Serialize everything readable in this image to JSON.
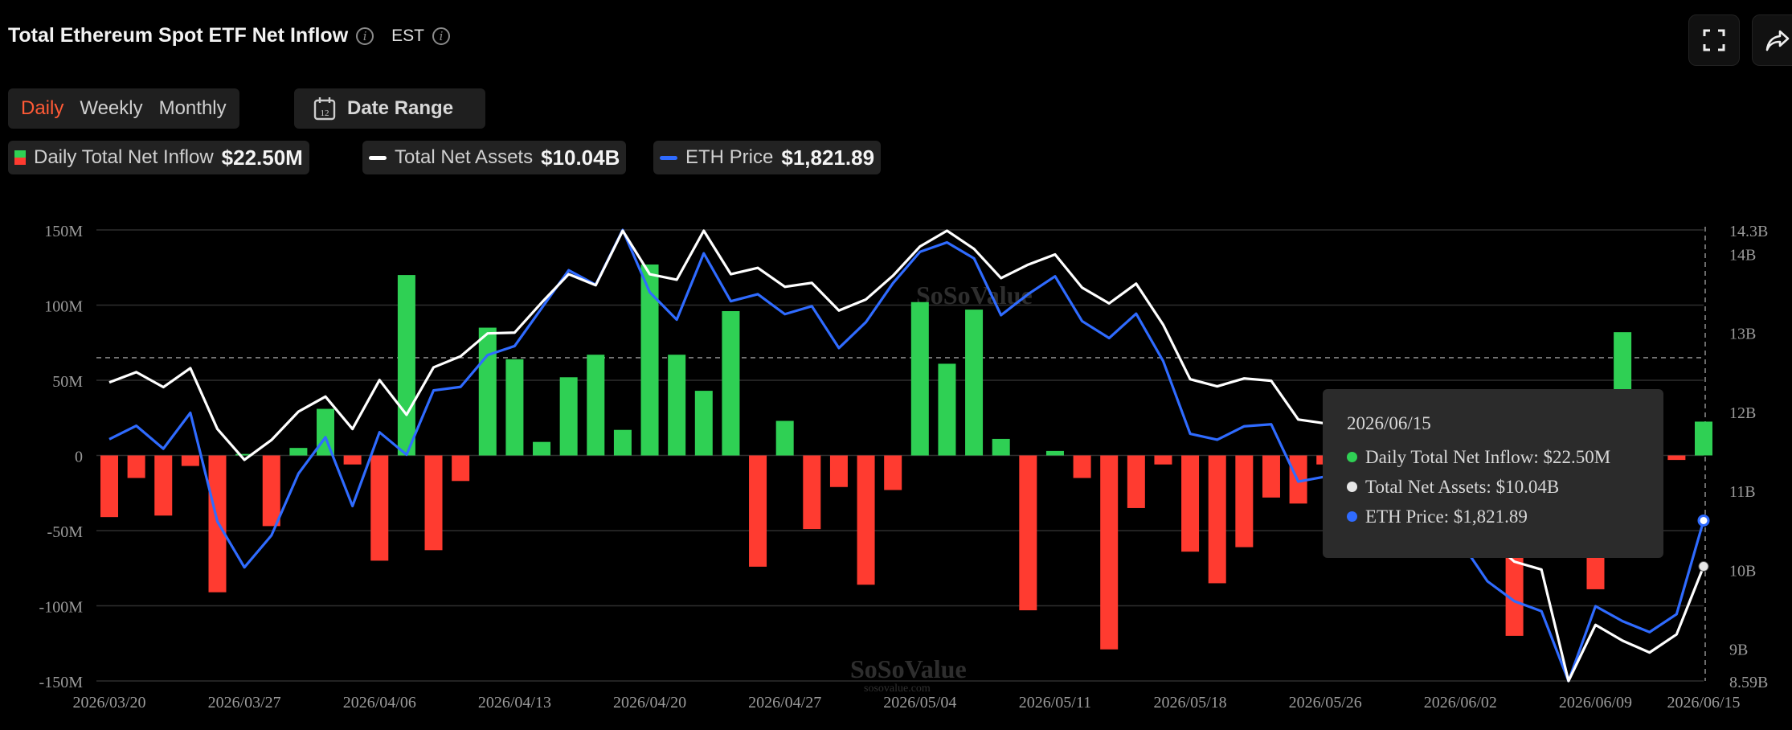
{
  "header": {
    "title": "Total Ethereum Spot ETF Net Inflow",
    "timezone": "EST",
    "icons": [
      "info-icon",
      "info-icon",
      "fullscreen-icon",
      "share-icon"
    ]
  },
  "controls": {
    "tabs": [
      {
        "label": "Daily",
        "active": true
      },
      {
        "label": "Weekly",
        "active": false
      },
      {
        "label": "Monthly",
        "active": false
      }
    ],
    "date_range_label": "Date Range",
    "calendar_icon_text": "12"
  },
  "legend": {
    "inflow": {
      "label": "Daily Total Net Inflow",
      "value": "$22.50M"
    },
    "assets": {
      "label": "Total Net Assets",
      "value": "$10.04B"
    },
    "price": {
      "label": "ETH Price",
      "value": "$1,821.89"
    }
  },
  "tooltip": {
    "date": "2026/06/15",
    "rows": [
      {
        "text": "Daily Total Net Inflow: $22.50M",
        "color": "#2fd054"
      },
      {
        "text": "Total Net Assets: $10.04B",
        "color": "#e6e6e6"
      },
      {
        "text": "ETH Price: $1,821.89",
        "color": "#2f6bff"
      }
    ]
  },
  "colors": {
    "positive": "#2fd054",
    "negative": "#ff3b30",
    "assets_line": "#ffffff",
    "price_line": "#2f6bff",
    "active_tab": "#ff5a36"
  },
  "chart_data": {
    "type": "bar",
    "title": "Total Ethereum Spot ETF Net Inflow",
    "ylim": [
      -150,
      150
    ],
    "left_ticks": [
      "150M",
      "100M",
      "50M",
      "0",
      "-50M",
      "-100M",
      "-150M"
    ],
    "left_tick_values": [
      150,
      100,
      50,
      0,
      -50,
      -100,
      -150
    ],
    "right_ticks": [
      "14.3B",
      "14B",
      "13B",
      "12B",
      "11B",
      "10B",
      "9B",
      "8.59B"
    ],
    "right_tick_values": [
      14.3,
      14,
      13,
      12,
      11,
      10,
      9,
      8.59
    ],
    "right_ylim": [
      8.59,
      14.3
    ],
    "x_tick_labels": [
      "2026/03/20",
      "2026/03/27",
      "2026/04/06",
      "2026/04/13",
      "2026/04/20",
      "2026/04/27",
      "2026/05/04",
      "2026/05/11",
      "2026/05/18",
      "2026/05/26",
      "2026/06/02",
      "2026/06/09",
      "2026/06/15"
    ],
    "x_tick_index": [
      0,
      5,
      10,
      15,
      20,
      25,
      30,
      35,
      40,
      45,
      50,
      55,
      59
    ],
    "reference_line_value": 65,
    "series": [
      {
        "name": "Daily Total Net Inflow",
        "unit": "M",
        "values": [
          -41,
          -15,
          -40,
          -7,
          -91,
          1,
          -47,
          5,
          31,
          -6,
          -70,
          120,
          -63,
          -17,
          85,
          64,
          9,
          52,
          67,
          17,
          127,
          67,
          43,
          96,
          -74,
          23,
          -49,
          -21,
          -86,
          -23,
          102,
          61,
          97,
          11,
          -103,
          3,
          -15,
          -129,
          -35,
          -6,
          -64,
          -85,
          -61,
          -28,
          -32,
          -6,
          -35,
          12,
          9,
          -5,
          5,
          -40,
          -120,
          -40,
          -60,
          -89,
          82,
          5,
          -3,
          22.5
        ]
      },
      {
        "name": "Total Net Assets",
        "unit": "B",
        "values": [
          12.37,
          12.5,
          12.31,
          12.55,
          11.78,
          11.39,
          11.64,
          12.0,
          12.19,
          11.78,
          12.4,
          11.96,
          12.56,
          12.7,
          12.99,
          13.0,
          13.38,
          13.74,
          13.6,
          14.29,
          13.74,
          13.67,
          14.29,
          13.74,
          13.82,
          13.58,
          13.63,
          13.28,
          13.42,
          13.72,
          14.09,
          14.29,
          14.06,
          13.69,
          13.86,
          13.99,
          13.57,
          13.37,
          13.62,
          13.1,
          12.41,
          12.32,
          12.42,
          12.39,
          11.9,
          11.85,
          11.8,
          11.7,
          11.5,
          11.3,
          10.9,
          10.4,
          10.1,
          10.0,
          8.59,
          9.3,
          9.1,
          8.95,
          9.18,
          10.04
        ]
      },
      {
        "name": "ETH Price",
        "unit": "$",
        "values": [
          1985,
          2012,
          1966,
          2038,
          1820,
          1728,
          1792,
          1916,
          1989,
          1851,
          1999,
          1954,
          2083,
          2090,
          2154,
          2172,
          2248,
          2324,
          2295,
          2405,
          2280,
          2225,
          2358,
          2262,
          2276,
          2236,
          2252,
          2168,
          2220,
          2298,
          2361,
          2380,
          2348,
          2234,
          2276,
          2312,
          2222,
          2188,
          2237,
          2142,
          1996,
          1984,
          2011,
          2015,
          1900,
          1910,
          1890,
          1870,
          1850,
          1830,
          1780,
          1700,
          1660,
          1640,
          1500,
          1650,
          1620,
          1598,
          1634,
          1821.89
        ]
      }
    ]
  },
  "watermark": {
    "brand": "SoSoValue",
    "url": "sosovalue.com"
  }
}
